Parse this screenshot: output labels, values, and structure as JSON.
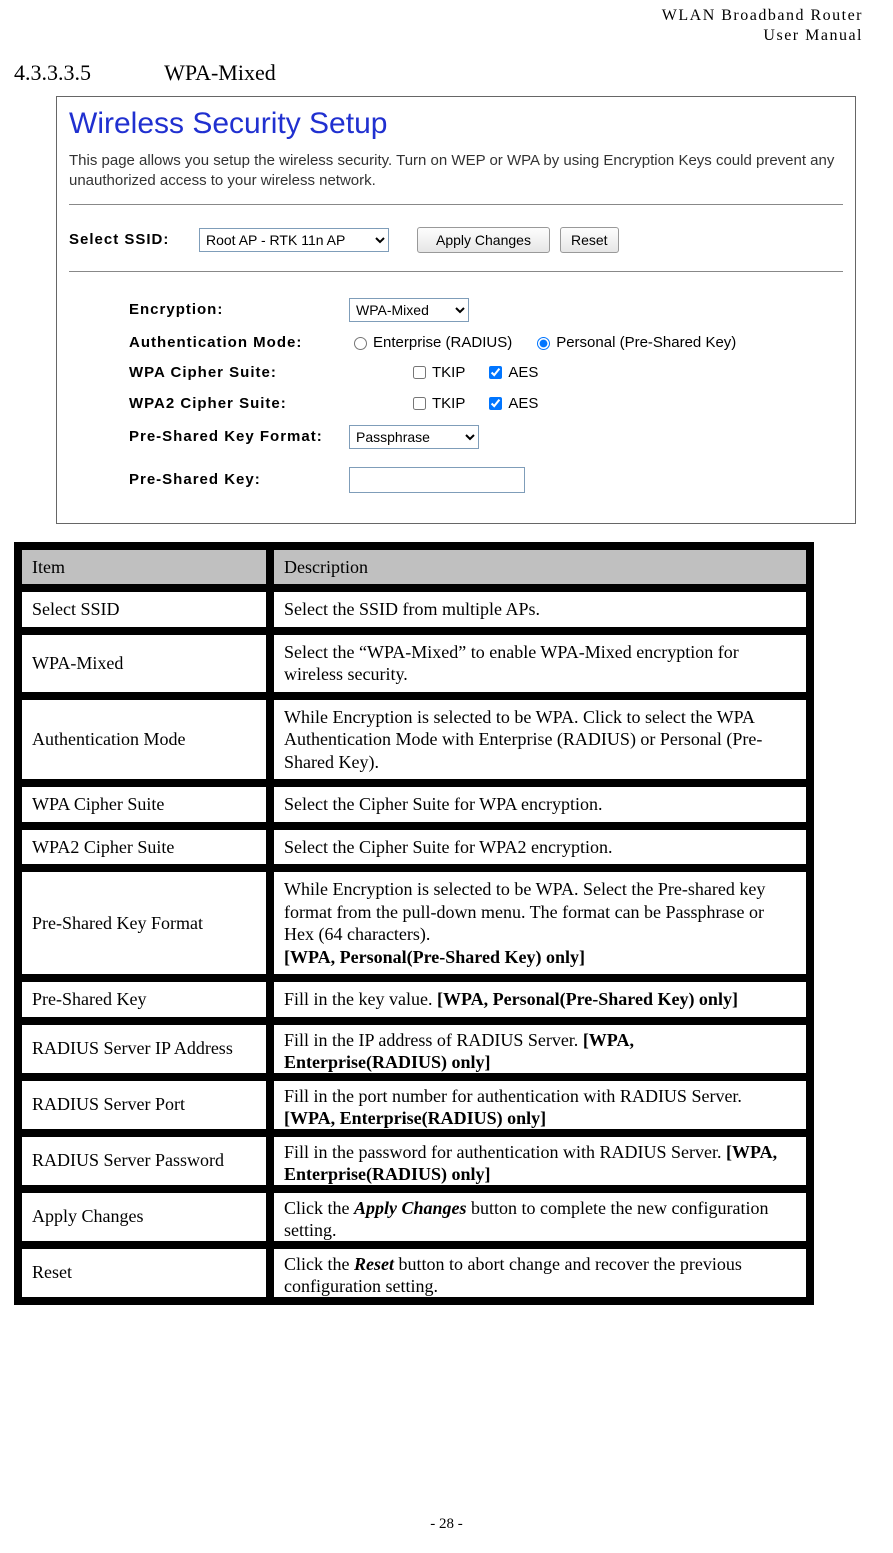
{
  "header": {
    "line1": "WLAN  Broadband  Router",
    "line2": "User  Manual"
  },
  "section": {
    "number": "4.3.3.3.5",
    "title": "WPA-Mixed"
  },
  "screenshot": {
    "title": "Wireless Security Setup",
    "description": "This page allows you setup the wireless security. Turn on WEP or WPA by using Encryption Keys could prevent any unauthorized access to your wireless network.",
    "select_ssid_label": "Select SSID:",
    "ssid_value": "Root AP - RTK 11n AP",
    "apply_button": "Apply Changes",
    "reset_button": "Reset",
    "encryption_label": "Encryption:",
    "encryption_value": "WPA-Mixed",
    "auth_mode_label": "Authentication Mode:",
    "auth_radio_enterprise": "Enterprise (RADIUS)",
    "auth_radio_personal": "Personal (Pre-Shared Key)",
    "wpa_cipher_label": "WPA Cipher Suite:",
    "wpa2_cipher_label": "WPA2 Cipher Suite:",
    "cipher_tkip": "TKIP",
    "cipher_aes": "AES",
    "psk_format_label": "Pre-Shared Key Format:",
    "psk_format_value": "Passphrase",
    "psk_label": "Pre-Shared Key:"
  },
  "table": {
    "header_item": "Item",
    "header_desc": "Description",
    "colors": {
      "border": "#000000",
      "header_bg": "#c0c0c0",
      "cell_bg": "#ffffff"
    },
    "rows": [
      {
        "item": "Select SSID",
        "desc": "Select the SSID from multiple APs."
      },
      {
        "item": "WPA-Mixed",
        "desc": "Select the “WPA-Mixed” to enable WPA-Mixed encryption for wireless security."
      },
      {
        "item": "Authentication Mode",
        "desc": "While Encryption is selected to be WPA. Click to select the WPA Authentication Mode with Enterprise (RADIUS) or Personal (Pre-Shared Key)."
      },
      {
        "item": "WPA Cipher Suite",
        "desc": "Select the Cipher Suite for WPA encryption."
      },
      {
        "item": "WPA2 Cipher Suite",
        "desc": "Select the Cipher Suite for WPA2 encryption."
      },
      {
        "item": "Pre-Shared Key Format",
        "desc_html": "While Encryption is selected to be WPA. Select the Pre-shared key format from the pull-down menu. The format can be Passphrase or Hex (64 characters).<br><span class='desc-bold'>[WPA, Personal(Pre-Shared Key) only]</span>"
      },
      {
        "item": "Pre-Shared Key",
        "desc_html": "Fill in the key value. <span class='desc-bold'>[WPA, Personal(Pre-Shared Key) only]</span>"
      },
      {
        "item": "RADIUS Server IP Address",
        "desc_html": "<span class='overflow-cell'>Fill in the IP address of RADIUS Server. <span class='desc-bold'>[WPA, Enterprise(RADIUS) only]</span></span>",
        "clipped": true
      },
      {
        "item": "RADIUS Server Port",
        "desc_html": "<span class='overflow-cell'>Fill in the port number for authentication with RADIUS Server. <span class='desc-bold'>[WPA, Enterprise(RADIUS) only]</span></span>",
        "clipped": true
      },
      {
        "item": "RADIUS Server Password",
        "desc_html": "<span class='overflow-cell'>Fill in the password for authentication with RADIUS Server. <span class='desc-bold'>[WPA, Enterprise(RADIUS) only]</span></span>",
        "clipped": true
      },
      {
        "item": "Apply Changes",
        "desc_html": "<span class='overflow-cell'>Click the <span class='desc-ital'>Apply Changes</span> button to complete the new configuration setting.</span>",
        "clipped": true
      },
      {
        "item": "Reset",
        "desc_html": "<span class='overflow-cell'>Click the <span class='desc-ital'>Reset</span> button to abort change and recover the previous configuration setting.</span>",
        "clipped": true
      }
    ]
  },
  "footer": {
    "page_number": "- 28 -"
  }
}
